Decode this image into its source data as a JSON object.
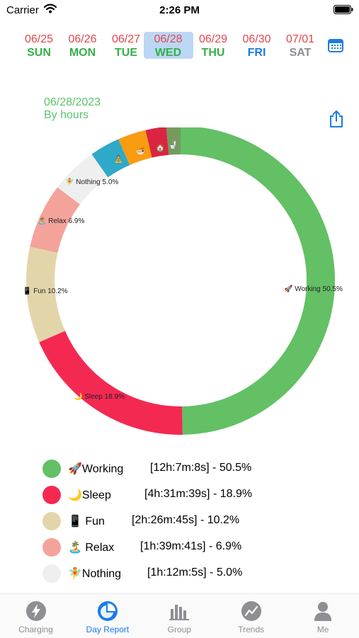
{
  "status": {
    "carrier": "Carrier",
    "time": "2:26 PM"
  },
  "week": [
    {
      "date": "06/25",
      "day": "SUN",
      "color": "#36b04a"
    },
    {
      "date": "06/26",
      "day": "MON",
      "color": "#36b04a"
    },
    {
      "date": "06/27",
      "day": "TUE",
      "color": "#36b04a"
    },
    {
      "date": "06/28",
      "day": "WED",
      "color": "#36b04a",
      "selected": true
    },
    {
      "date": "06/29",
      "day": "THU",
      "color": "#36b04a"
    },
    {
      "date": "06/30",
      "day": "FRI",
      "color": "#1c7be8"
    },
    {
      "date": "07/01",
      "day": "SAT",
      "color": "#8e8e93"
    }
  ],
  "report": {
    "date": "06/28/2023",
    "mode": "By hours"
  },
  "segments": [
    {
      "label": "🚀 Working 50.5%",
      "color": "#63c065",
      "value": 50.5
    },
    {
      "label": "🌙 Sleep 18.9%",
      "color": "#f42952",
      "value": 18.9
    },
    {
      "label": "📱 Fun 10.2%",
      "color": "#e3d5aa",
      "value": 10.2
    },
    {
      "label": "🏝️ Relax 6.9%",
      "color": "#f4a39a",
      "value": 6.9
    },
    {
      "label": "🧚 Nothing 5.0%",
      "color": "#efefef",
      "value": 5.0
    },
    {
      "label": "🧘",
      "color": "#2ea9c9",
      "value": 3.2
    },
    {
      "label": "🍜",
      "color": "#f89c10",
      "value": 3.0
    },
    {
      "label": "🏠",
      "color": "#d92542",
      "value": 2.2
    },
    {
      "label": "🚽",
      "color": "#759a5e",
      "value": 1.5
    }
  ],
  "legend": [
    {
      "name": "🚀Working",
      "detail": "[12h:7m:8s]  -  50.5%",
      "color": "#63c065"
    },
    {
      "name": "🌙Sleep",
      "detail": "[4h:31m:39s]  -  18.9%",
      "color": "#f42952"
    },
    {
      "name": "📱 Fun",
      "detail": "[2h:26m:45s]  -  10.2%",
      "color": "#e3d5aa"
    },
    {
      "name": "🏝️ Relax",
      "detail": "[1h:39m:41s]  -  6.9%",
      "color": "#f4a39a"
    },
    {
      "name": "🧚Nothing",
      "detail": "[1h:12m:5s]  -  5.0%",
      "color": "#efefef"
    }
  ],
  "tabs": [
    {
      "label": "Charging",
      "icon": "bolt-icon"
    },
    {
      "label": "Day Report",
      "icon": "pie-chart-icon",
      "active": true
    },
    {
      "label": "Group",
      "icon": "bar-chart-icon"
    },
    {
      "label": "Trends",
      "icon": "trend-chart-icon"
    },
    {
      "label": "Me",
      "icon": "person-icon"
    }
  ]
}
